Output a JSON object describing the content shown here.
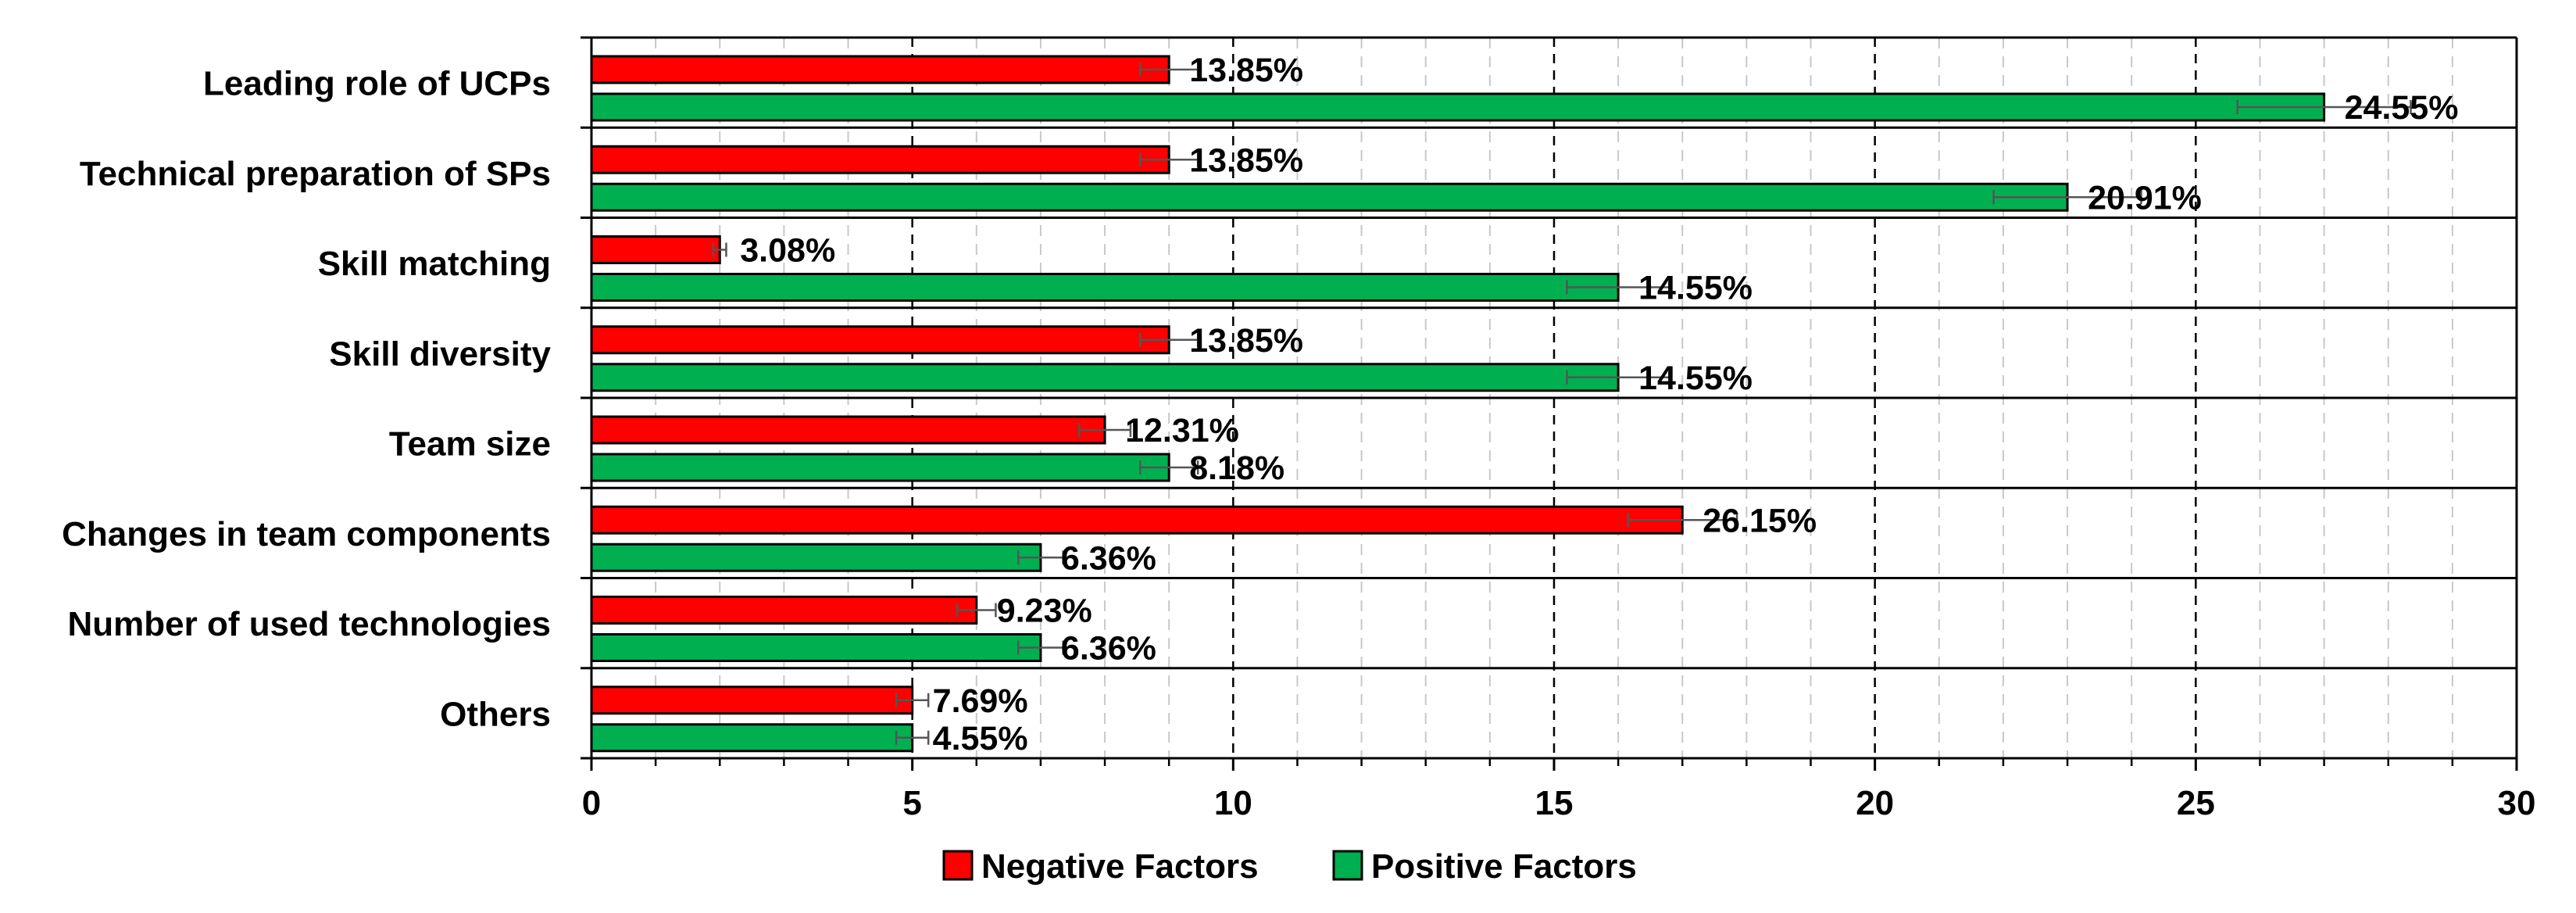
{
  "chart_data": {
    "type": "bar",
    "orientation": "horizontal",
    "title": "",
    "xlabel": "",
    "ylabel": "",
    "categories": [
      "Leading role of UCPs",
      "Technical preparation of SPs",
      "Skill matching",
      "Skill diversity",
      "Team size",
      "Changes in team components",
      "Number of used technologies",
      "Others"
    ],
    "series": [
      {
        "name": "Negative Factors",
        "color": "#ff0000",
        "values": [
          9,
          9,
          2,
          9,
          8,
          17,
          6,
          5
        ],
        "labels": [
          "13.85%",
          "13.85%",
          "3.08%",
          "13.85%",
          "12.31%",
          "26.15%",
          "9.23%",
          "7.69%"
        ],
        "error": [
          0.45,
          0.45,
          0.1,
          0.45,
          0.4,
          0.85,
          0.3,
          0.25
        ]
      },
      {
        "name": "Positive Factors",
        "color": "#00b050",
        "values": [
          27,
          23,
          16,
          16,
          9,
          7,
          7,
          5
        ],
        "labels": [
          "24.55%",
          "20.91%",
          "14.55%",
          "14.55%",
          "8.18%",
          "6.36%",
          "6.36%",
          "4.55%"
        ],
        "error": [
          1.35,
          1.15,
          0.8,
          0.8,
          0.45,
          0.35,
          0.35,
          0.25
        ]
      }
    ],
    "xlim": [
      0,
      30
    ],
    "xticks": [
      0,
      5,
      10,
      15,
      20,
      25,
      30
    ],
    "xtick_labels": [
      "0",
      "5",
      "10",
      "15",
      "20",
      "25",
      "30"
    ],
    "major_grid": "dashed-black",
    "minor_grid": "dashed-gray",
    "legend": {
      "position": "bottom",
      "entries": [
        "Negative Factors",
        "Positive Factors"
      ]
    }
  }
}
